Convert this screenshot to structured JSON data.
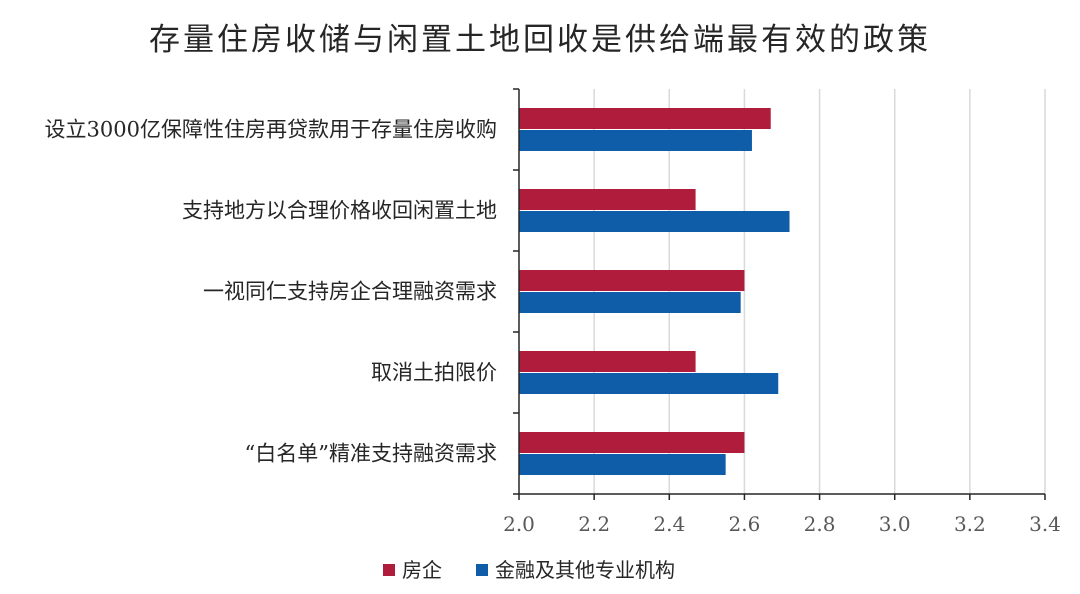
{
  "chart_data": {
    "type": "bar",
    "orientation": "horizontal",
    "title": "存量住房收储与闲置土地回收是供给端最有效的政策",
    "categories": [
      "设立3000亿保障性住房再贷款用于存量住房收购",
      "支持地方以合理价格收回闲置土地",
      "一视同仁支持房企合理融资需求",
      "取消土拍限价",
      "“白名单”精准支持融资需求"
    ],
    "series": [
      {
        "name": "房企",
        "color": "#B01C3C",
        "values": [
          2.67,
          2.47,
          2.6,
          2.47,
          2.6
        ]
      },
      {
        "name": "金融及其他专业机构",
        "color": "#0F5CA8",
        "values": [
          2.62,
          2.72,
          2.59,
          2.69,
          2.55
        ]
      }
    ],
    "xlim": [
      2.0,
      3.4
    ],
    "xticks": [
      "2.0",
      "2.2",
      "2.4",
      "2.6",
      "2.8",
      "3.0",
      "3.2",
      "3.4"
    ],
    "grid": true,
    "legend_position": "bottom"
  }
}
